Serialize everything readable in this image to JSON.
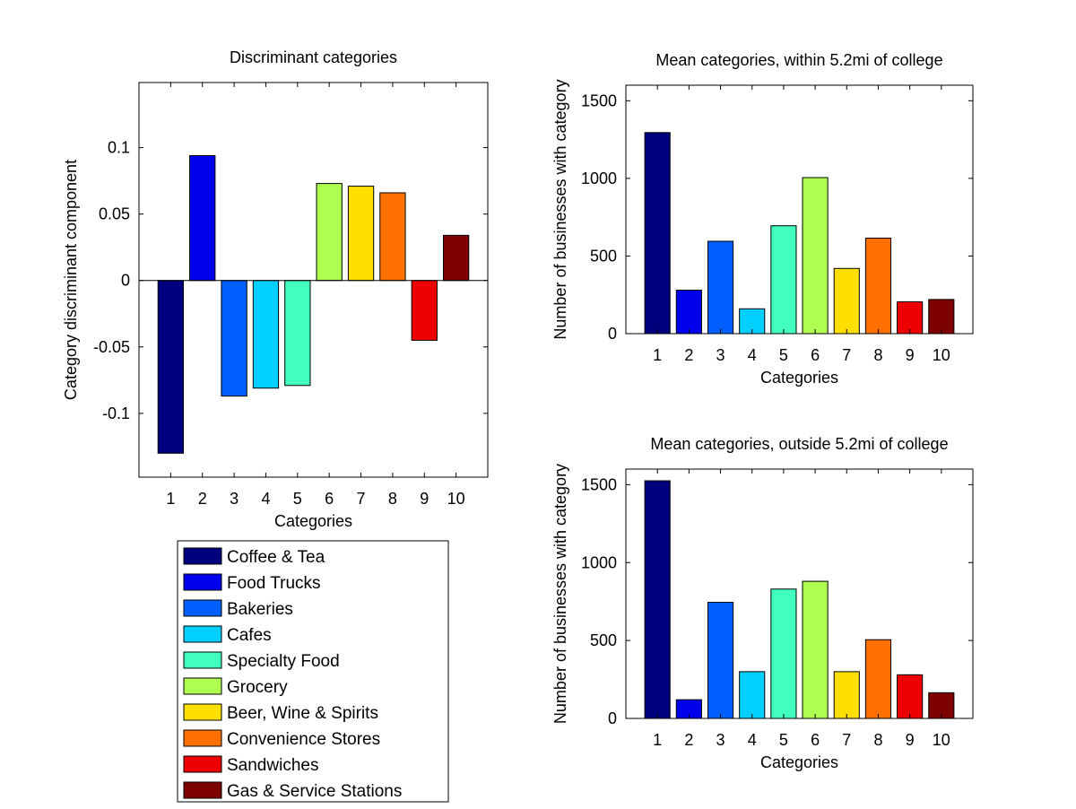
{
  "chart_data": [
    {
      "type": "bar",
      "title": "Discriminant categories",
      "xlabel": "Categories",
      "ylabel": "Category discriminant component",
      "categories": [
        "1",
        "2",
        "3",
        "4",
        "5",
        "6",
        "7",
        "8",
        "9",
        "10"
      ],
      "values": [
        -0.13,
        0.094,
        -0.087,
        -0.081,
        -0.079,
        0.073,
        0.071,
        0.066,
        -0.045,
        0.034
      ],
      "ylim": [
        -0.148,
        0.149
      ],
      "yticks": [
        -0.1,
        -0.05,
        0,
        0.05,
        0.1
      ],
      "ytick_labels": [
        "-0.1",
        "-0.05",
        "0",
        "0.05",
        "0.1"
      ],
      "grid": false,
      "zero_line": true
    },
    {
      "type": "bar",
      "title": "Mean categories, within 5.2mi of college",
      "xlabel": "Categories",
      "ylabel": "Number of businesses with category",
      "categories": [
        "1",
        "2",
        "3",
        "4",
        "5",
        "6",
        "7",
        "8",
        "9",
        "10"
      ],
      "values": [
        1295,
        280,
        595,
        160,
        695,
        1005,
        420,
        615,
        205,
        220
      ],
      "ylim": [
        0,
        1600
      ],
      "yticks": [
        0,
        500,
        1000,
        1500
      ],
      "ytick_labels": [
        "0",
        "500",
        "1000",
        "1500"
      ],
      "grid": false
    },
    {
      "type": "bar",
      "title": "Mean categories, outside 5.2mi of college",
      "xlabel": "Categories",
      "ylabel": "Number of businesses with category",
      "categories": [
        "1",
        "2",
        "3",
        "4",
        "5",
        "6",
        "7",
        "8",
        "9",
        "10"
      ],
      "values": [
        1525,
        120,
        745,
        300,
        830,
        880,
        300,
        505,
        280,
        165
      ],
      "ylim": [
        0,
        1600
      ],
      "yticks": [
        0,
        500,
        1000,
        1500
      ],
      "ytick_labels": [
        "0",
        "500",
        "1000",
        "1500"
      ],
      "grid": false
    }
  ],
  "legend": {
    "placement": "bottom-left",
    "entries": [
      {
        "label": "Coffee & Tea",
        "color": "#00007f"
      },
      {
        "label": "Food Trucks",
        "color": "#0000ef"
      },
      {
        "label": "Bakeries",
        "color": "#0060ff"
      },
      {
        "label": "Cafes",
        "color": "#00cfff"
      },
      {
        "label": "Specialty Food",
        "color": "#40ffbf"
      },
      {
        "label": "Grocery",
        "color": "#afff50"
      },
      {
        "label": "Beer, Wine & Spirits",
        "color": "#ffdf00"
      },
      {
        "label": "Convenience Stores",
        "color": "#ff7000"
      },
      {
        "label": "Sandwiches",
        "color": "#ef0000"
      },
      {
        "label": "Gas & Service Stations",
        "color": "#7f0000"
      }
    ]
  }
}
